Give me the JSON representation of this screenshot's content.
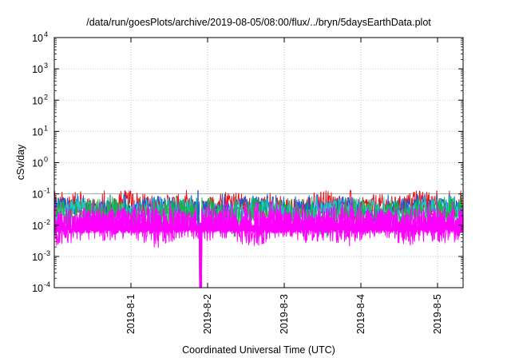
{
  "chart_data": {
    "type": "line",
    "title": "/data/run/goesPlots/archive/2019-08-05/08:00/flux/../bryn/5daysEarthData.plot",
    "xlabel": "Coordinated Universal Time (UTC)",
    "ylabel": "cSv/day",
    "yscale": "log",
    "ylim": [
      0.0001,
      10000
    ],
    "xlim": [
      "2019-07-31T00:00",
      "2019-08-05T08:00"
    ],
    "y_ticks": [
      {
        "base": "10",
        "exp": "-4",
        "value": 0.0001
      },
      {
        "base": "10",
        "exp": "-3",
        "value": 0.001
      },
      {
        "base": "10",
        "exp": "-2",
        "value": 0.01
      },
      {
        "base": "10",
        "exp": "-1",
        "value": 0.1
      },
      {
        "base": "10",
        "exp": "0",
        "value": 1
      },
      {
        "base": "10",
        "exp": "1",
        "value": 10
      },
      {
        "base": "10",
        "exp": "2",
        "value": 100
      },
      {
        "base": "10",
        "exp": "3",
        "value": 1000
      },
      {
        "base": "10",
        "exp": "4",
        "value": 10000
      }
    ],
    "x_ticks": [
      {
        "label": "2019-8-1",
        "value": "2019-08-01T00:00"
      },
      {
        "label": "2019-8-2",
        "value": "2019-08-02T00:00"
      },
      {
        "label": "2019-8-3",
        "value": "2019-08-03T00:00"
      },
      {
        "label": "2019-8-4",
        "value": "2019-08-04T00:00"
      },
      {
        "label": "2019-8-5",
        "value": "2019-08-05T00:00"
      }
    ],
    "grid": true,
    "reference_line": {
      "value": 0.1,
      "color": "#999999"
    },
    "gap": {
      "start": "2019-08-01T21:30",
      "end": "2019-08-01T22:10"
    },
    "series": [
      {
        "color": "#e8141c",
        "base": 0.06,
        "spread": 0.35,
        "spike": 0.11
      },
      {
        "color": "#1060e0",
        "base": 0.05,
        "spread": 0.25,
        "spike": 0.085
      },
      {
        "color": "#20c8c8",
        "base": 0.04,
        "spread": 0.3,
        "spike": 0.07
      },
      {
        "color": "#19b34a",
        "base": 0.03,
        "spread": 0.5,
        "spike": 0.06
      },
      {
        "color": "#ff00ff",
        "base": 0.012,
        "spread": 0.45,
        "spike": 0.05
      }
    ]
  }
}
